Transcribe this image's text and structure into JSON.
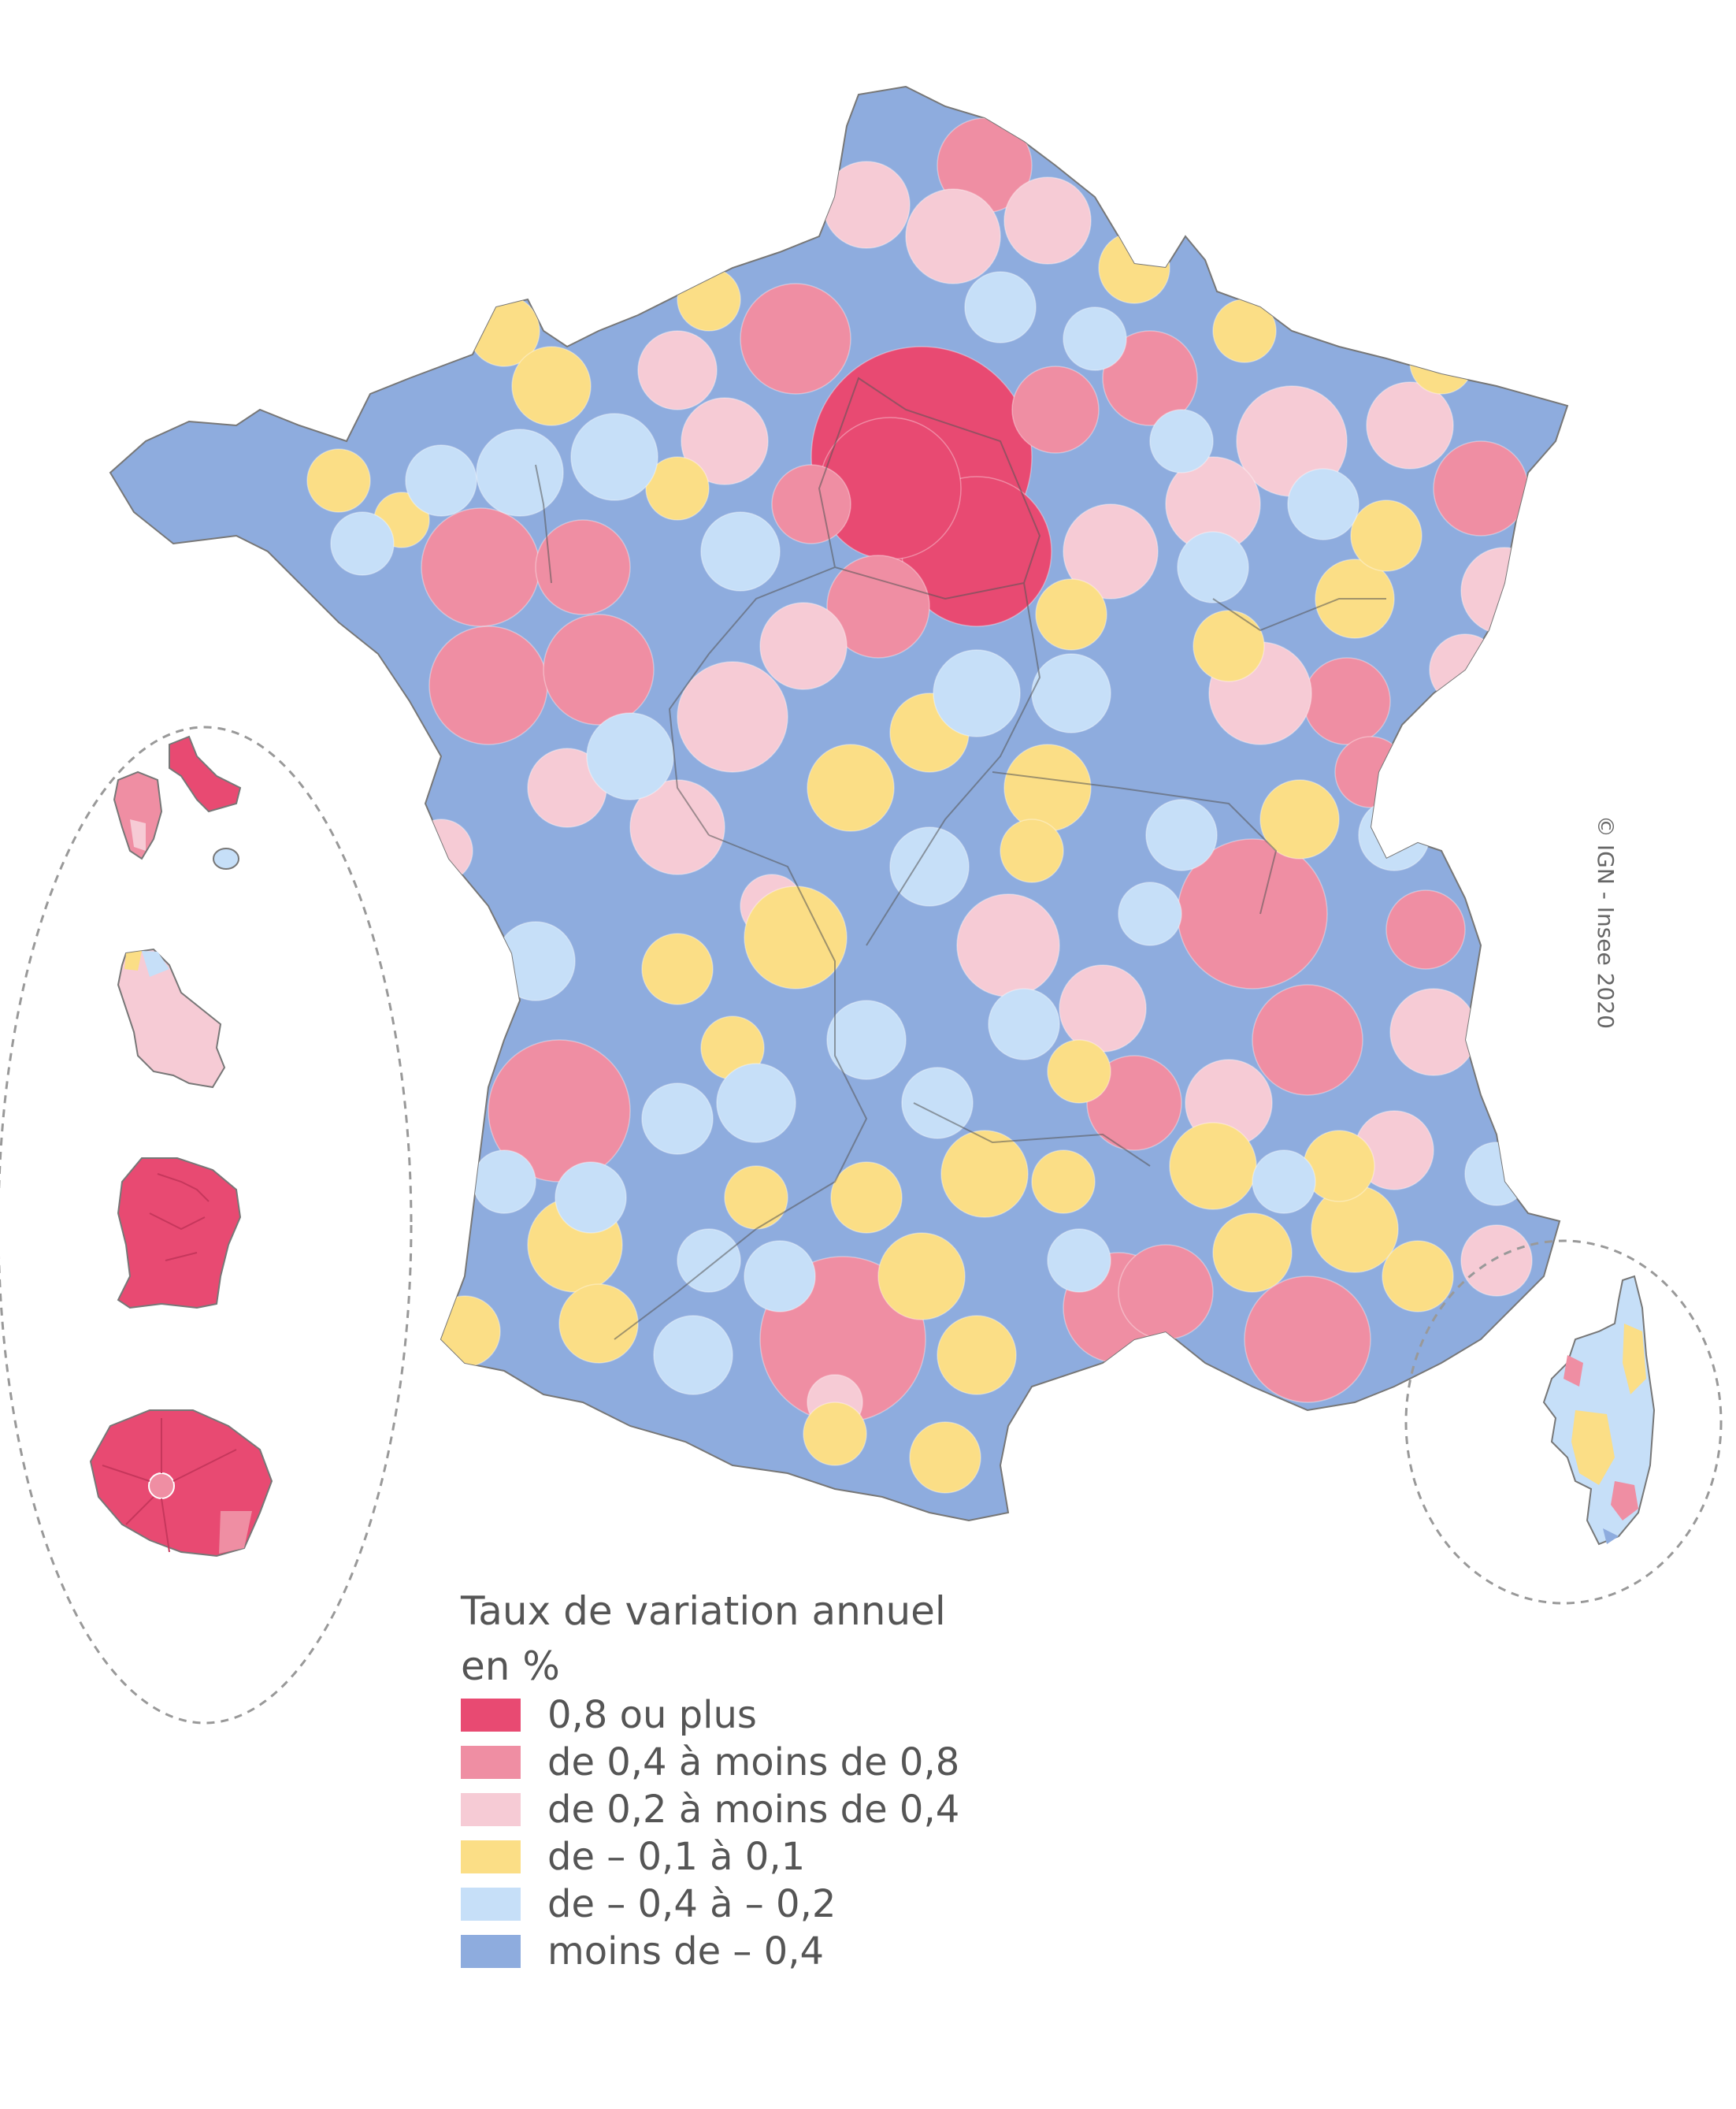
{
  "legend": {
    "title_line1": "Taux de variation annuel",
    "title_line2": "en %",
    "classes": [
      {
        "label": "0,8 ou plus",
        "color": "#e84a72"
      },
      {
        "label": "de 0,4 à moins de 0,8",
        "color": "#ef8ea3"
      },
      {
        "label": "de 0,2 à moins de 0,4",
        "color": "#f6cbd5"
      },
      {
        "label": "de – 0,1 à 0,1",
        "color": "#fbde86"
      },
      {
        "label": "de – 0,4 à – 0,2",
        "color": "#c6dff8"
      },
      {
        "label": "moins de – 0,4",
        "color": "#8eacde"
      }
    ]
  },
  "credit": "© IGN - Insee 2020",
  "colors": {
    "border": "#999999",
    "inset_dash": "#999999",
    "background": "#ffffff"
  }
}
